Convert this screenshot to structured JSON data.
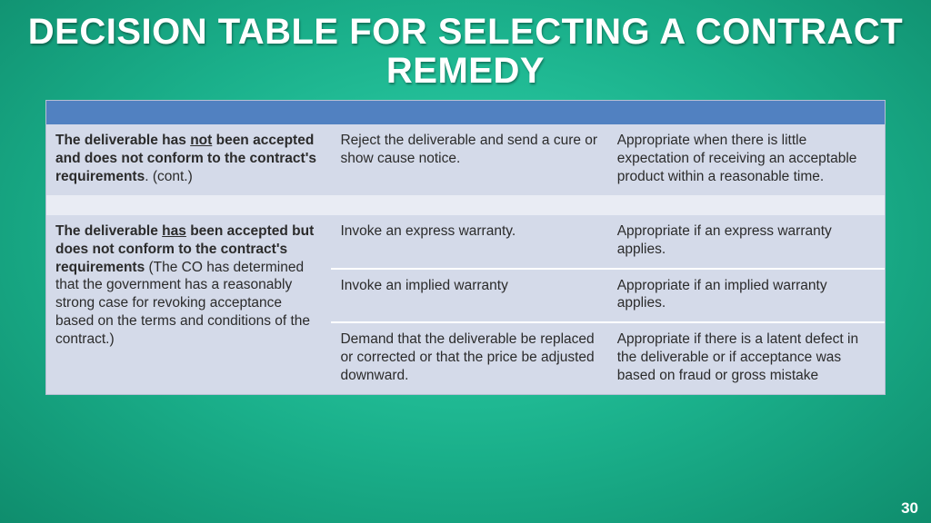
{
  "title": "DECISION TABLE FOR SELECTING A CONTRACT REMEDY",
  "page_number": "30",
  "colors": {
    "bg_gradient_inner": "#2fd4ab",
    "bg_gradient_mid": "#1aaf8a",
    "bg_gradient_outer": "#0f8d6d",
    "header_row": "#5181c1",
    "row_dark": "#d4dae9",
    "row_light": "#e9ecf4",
    "title_text": "#ffffff",
    "body_text": "#2b2b2b"
  },
  "table": {
    "column_widths_pct": [
      34,
      33,
      33
    ],
    "header_cells": [
      "",
      "",
      ""
    ],
    "groups": [
      {
        "situation_bold_pre": "The deliverable has ",
        "situation_underlined": "not",
        "situation_bold_post": " been accepted and does not conform to the contract's requirements",
        "situation_tail": ". (cont.)",
        "rows": [
          {
            "remedy": "Reject the deliverable and send a cure or show cause notice.",
            "when": "Appropriate when there is little expectation of receiving an acceptable product within a reasonable time."
          }
        ]
      },
      {
        "situation_bold_pre": "The deliverable ",
        "situation_underlined": "has",
        "situation_bold_post": " been accepted but does not conform to the contract's requirements",
        "situation_tail": " (The CO has determined that the government has a reasonably strong case for revoking acceptance based on the terms and conditions of the contract.)",
        "rows": [
          {
            "remedy": "Invoke an express warranty.",
            "when": "Appropriate if an express warranty applies."
          },
          {
            "remedy": "Invoke an implied warranty",
            "when": "Appropriate if an implied warranty applies."
          },
          {
            "remedy": "Demand that the deliverable be replaced or corrected or that the price be adjusted downward.",
            "when": "Appropriate if there is a latent defect in the deliverable or if acceptance was based on fraud or gross mistake"
          }
        ]
      }
    ]
  }
}
